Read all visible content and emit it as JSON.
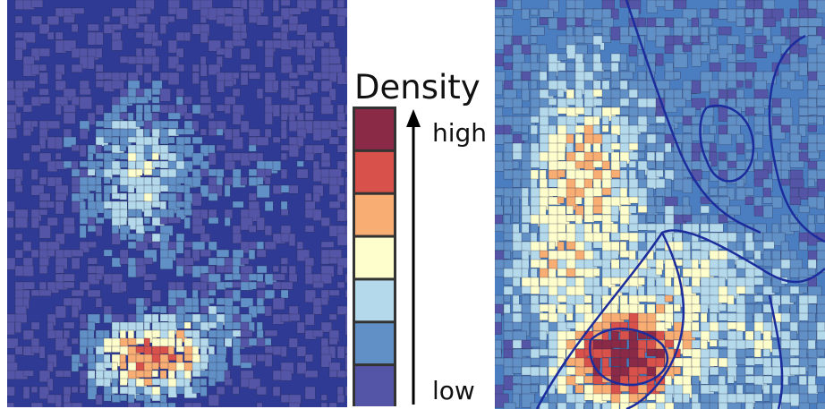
{
  "legend": {
    "title": "Density",
    "high_label": "high",
    "low_label": "low",
    "colors": [
      "#8b2a47",
      "#d9514b",
      "#f8ad73",
      "#fefecc",
      "#b3d9ea",
      "#6090c6",
      "#5555a8"
    ]
  }
}
